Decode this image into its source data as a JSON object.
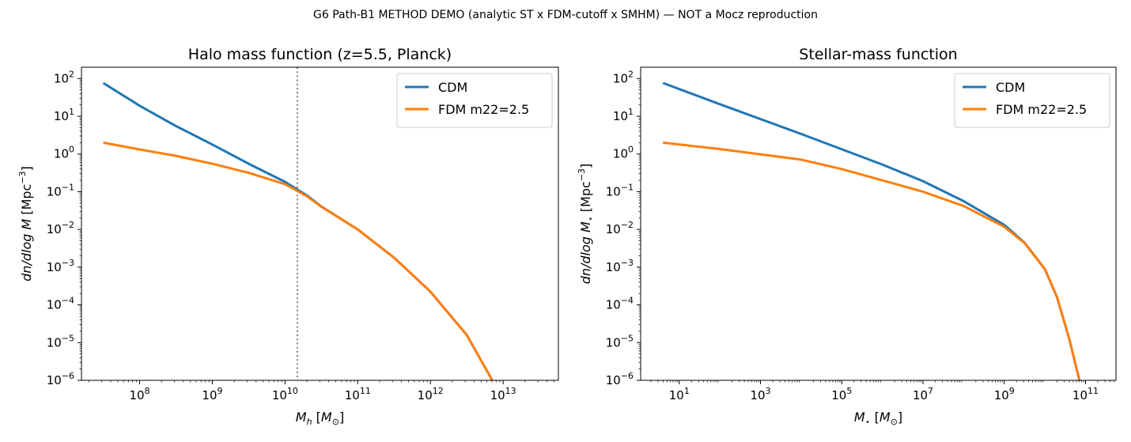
{
  "suptitle": "G6 Path-B1 METHOD DEMO (analytic ST x FDM-cutoff x SMHM) — NOT a Mocz reproduction",
  "colors": {
    "cdm": "#1f77b4",
    "fdm": "#ff7f0e",
    "cutoff": "#808080"
  },
  "chart_data": [
    {
      "type": "line",
      "title": "Halo mass function (z=5.5, Planck)",
      "xlabel_main": "M",
      "xlabel_sub": "h",
      "xlabel_unit_open": " [",
      "xlabel_unit_main": "M",
      "xlabel_unit_sub": "⊙",
      "xlabel_unit_close": "]",
      "ylabel_main": "dn/dlog M",
      "ylabel_sub": "",
      "ylabel_unit": " [Mpc",
      "ylabel_exp": "−3",
      "ylabel_close": "]",
      "xscale": "log",
      "yscale": "log",
      "xlim_log10": [
        7.2,
        13.76
      ],
      "ylim_log10": [
        -6,
        2.3
      ],
      "xticks_log10": [
        8,
        9,
        10,
        11,
        12,
        13
      ],
      "yticks_log10": [
        2,
        1,
        0,
        -1,
        -2,
        -3,
        -4,
        -5,
        -6
      ],
      "vline_log10": 10.17,
      "legend_position": "upper right",
      "series": [
        {
          "name": "CDM",
          "color_key": "cdm",
          "x_log10": [
            7.5,
            8.0,
            8.5,
            9.0,
            9.5,
            10.0,
            10.3,
            10.5,
            11.0,
            11.5,
            12.0,
            12.5,
            12.85
          ],
          "y_log10": [
            1.88,
            1.28,
            0.74,
            0.25,
            -0.26,
            -0.74,
            -1.1,
            -1.39,
            -2.0,
            -2.75,
            -3.65,
            -4.8,
            -6.0
          ]
        },
        {
          "name": "FDM m22=2.5",
          "color_key": "fdm",
          "x_log10": [
            7.5,
            8.0,
            8.5,
            9.0,
            9.5,
            10.0,
            10.3,
            10.5,
            11.0,
            11.5,
            12.0,
            12.5,
            12.85
          ],
          "y_log10": [
            0.3,
            0.12,
            -0.05,
            -0.26,
            -0.5,
            -0.8,
            -1.12,
            -1.4,
            -2.0,
            -2.75,
            -3.65,
            -4.8,
            -6.0
          ]
        }
      ]
    },
    {
      "type": "line",
      "title": "Stellar-mass function",
      "xlabel_main": "M",
      "xlabel_sub": "⋆",
      "xlabel_unit_open": " [",
      "xlabel_unit_main": "M",
      "xlabel_unit_sub": "⊙",
      "xlabel_unit_close": "]",
      "ylabel_main": "dn/dlog M",
      "ylabel_sub": "⋆",
      "ylabel_unit": " [Mpc",
      "ylabel_exp": "−3",
      "ylabel_close": "]",
      "xscale": "log",
      "yscale": "log",
      "xlim_log10": [
        0.05,
        11.75
      ],
      "ylim_log10": [
        -6,
        2.3
      ],
      "xticks_log10": [
        1,
        3,
        5,
        7,
        9,
        11
      ],
      "yticks_log10": [
        2,
        1,
        0,
        -1,
        -2,
        -3,
        -4,
        -5,
        -6
      ],
      "legend_position": "upper right",
      "series": [
        {
          "name": "CDM",
          "color_key": "cdm",
          "x_log10": [
            0.6,
            2,
            4,
            6,
            7,
            8,
            9,
            9.5,
            10,
            10.3,
            10.6,
            10.85
          ],
          "y_log10": [
            1.88,
            1.32,
            0.53,
            -0.28,
            -0.72,
            -1.25,
            -1.88,
            -2.35,
            -3.05,
            -3.8,
            -4.9,
            -6.0
          ]
        },
        {
          "name": "FDM m22=2.5",
          "color_key": "fdm",
          "x_log10": [
            0.6,
            2,
            4,
            5,
            6,
            7,
            8,
            9,
            9.5,
            10,
            10.3,
            10.6,
            10.85
          ],
          "y_log10": [
            0.3,
            0.13,
            -0.15,
            -0.4,
            -0.7,
            -1.0,
            -1.38,
            -1.93,
            -2.36,
            -3.05,
            -3.8,
            -4.9,
            -6.0
          ]
        }
      ]
    }
  ]
}
